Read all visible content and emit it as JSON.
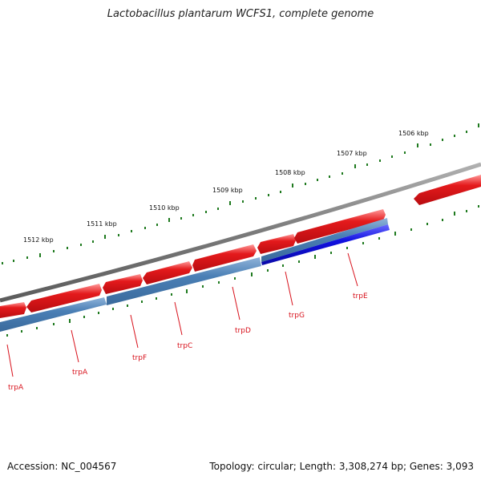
{
  "title": "Lactobacillus plantarum WCFS1, complete genome",
  "accession_text": "Accession: NC_004567",
  "summary_text": "Topology: circular; Length: 3,308,274 bp; Genes: 3,093",
  "colors": {
    "backbone": "#7a7a7a",
    "gene_fwd": "#e0141c",
    "cds_rev": "#4a7fb5",
    "cds_rev_selected": "#1010e0",
    "label_red": "#d8121c",
    "tick_green": "#1f7a1f"
  },
  "scale_labels": [
    "1512 kbp",
    "1511 kbp",
    "1510 kbp",
    "1509 kbp",
    "1508 kbp",
    "1507 kbp",
    "1506 kbp"
  ],
  "gene_labels": [
    "trpA",
    "trpA",
    "trpF",
    "trpC",
    "trpD",
    "trpG",
    "trpE"
  ]
}
